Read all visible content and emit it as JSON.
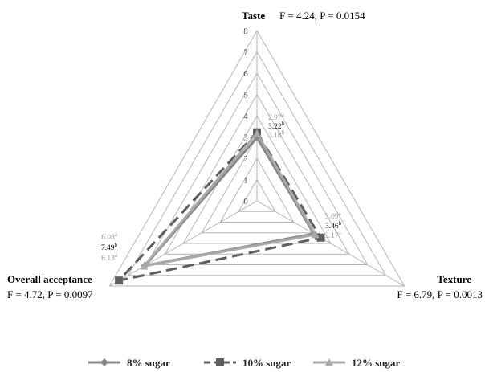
{
  "chart_data": {
    "type": "radar",
    "axes": [
      "Taste",
      "Texture",
      "Overall acceptance"
    ],
    "axis_stats": [
      "F = 4.24, P = 0.0154",
      "F = 6.79, P = 0.0013",
      "F = 4.72, P = 0.0097"
    ],
    "rmax": 8,
    "ticks": [
      "0",
      "1",
      "2",
      "3",
      "4",
      "5",
      "6",
      "7",
      "8"
    ],
    "series": [
      {
        "name": "8% sugar",
        "values": [
          2.97,
          3.09,
          6.08
        ],
        "labels": [
          "2.97",
          "3.09",
          "6.08"
        ],
        "sup": [
          "a",
          "a",
          "a"
        ],
        "color": "#888888",
        "dash": "none",
        "marker": "diamond"
      },
      {
        "name": "10% sugar",
        "values": [
          3.22,
          3.46,
          7.49
        ],
        "labels": [
          "3.22",
          "3.46",
          "7.49"
        ],
        "sup": [
          "b",
          "b",
          "b"
        ],
        "color": "#5f5f5f",
        "dash": "14,7",
        "marker": "square"
      },
      {
        "name": "12% sugar",
        "values": [
          3.18,
          3.17,
          6.13
        ],
        "labels": [
          "3.18",
          "3.17",
          "6.13"
        ],
        "sup": [
          "b",
          "a",
          "a"
        ],
        "color": "#a9a9a9",
        "dash": "none",
        "marker": "triangle"
      }
    ],
    "legend_position": "bottom",
    "grid": true
  }
}
